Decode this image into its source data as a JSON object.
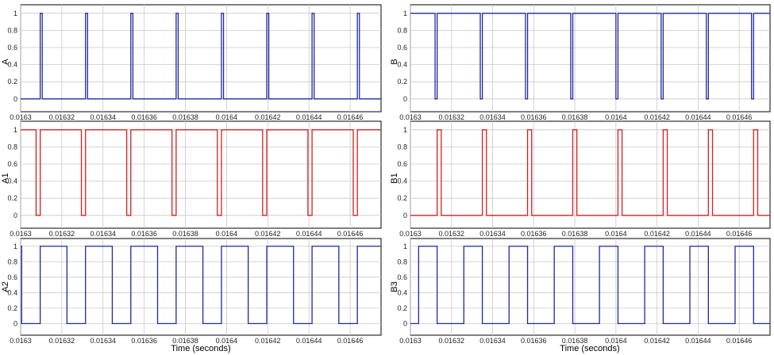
{
  "chart_data": [
    {
      "type": "line",
      "name": "A",
      "ylabel": "A",
      "xlabel": "",
      "color": "#1f2a9e",
      "xlim": [
        0.0163,
        0.016475
      ],
      "ylim": [
        -0.15,
        1.1
      ],
      "xticks": [
        "0.0163",
        "0.01632",
        "0.01634",
        "0.01636",
        "0.01638",
        "0.0164",
        "0.01642",
        "0.01644",
        "0.01646"
      ],
      "yticks": [
        "0",
        "0.2",
        "0.4",
        "0.6",
        "0.8",
        "1"
      ],
      "series": [
        {
          "x": [
            0.0163,
            0.0163095,
            0.0163095,
            0.0163105,
            0.0163105,
            0.0163315,
            0.0163315,
            0.0163325,
            0.0163325,
            0.0163535,
            0.0163535,
            0.0163545,
            0.0163545,
            0.0163755,
            0.0163755,
            0.0163765,
            0.0163765,
            0.0163975,
            0.0163975,
            0.0163985,
            0.0163985,
            0.0164195,
            0.0164195,
            0.0164205,
            0.0164205,
            0.0164415,
            0.0164415,
            0.0164425,
            0.0164425,
            0.0164635,
            0.0164635,
            0.0164645,
            0.0164645,
            0.016475
          ],
          "y": [
            0,
            0,
            1,
            1,
            0,
            0,
            1,
            1,
            0,
            0,
            1,
            1,
            0,
            0,
            1,
            1,
            0,
            0,
            1,
            1,
            0,
            0,
            1,
            1,
            0,
            0,
            1,
            1,
            0,
            0,
            1,
            1,
            0,
            0
          ]
        }
      ]
    },
    {
      "type": "line",
      "name": "A1",
      "ylabel": "A1",
      "xlabel": "",
      "color": "#d42020",
      "xlim": [
        0.0163,
        0.016475
      ],
      "ylim": [
        -0.15,
        1.1
      ],
      "xticks": [
        "0.0163",
        "0.01632",
        "0.01634",
        "0.01636",
        "0.01638",
        "0.0164",
        "0.01642",
        "0.01644",
        "0.01646"
      ],
      "yticks": [
        "0",
        "0.2",
        "0.4",
        "0.6",
        "0.8",
        "1"
      ],
      "series": [
        {
          "x": [
            0.0163,
            0.0163075,
            0.0163075,
            0.0163095,
            0.0163095,
            0.0163295,
            0.0163295,
            0.0163315,
            0.0163315,
            0.0163515,
            0.0163515,
            0.0163535,
            0.0163535,
            0.0163735,
            0.0163735,
            0.0163755,
            0.0163755,
            0.0163955,
            0.0163955,
            0.0163975,
            0.0163975,
            0.0164175,
            0.0164175,
            0.0164195,
            0.0164195,
            0.0164395,
            0.0164395,
            0.0164415,
            0.0164415,
            0.0164615,
            0.0164615,
            0.0164635,
            0.0164635,
            0.016475
          ],
          "y": [
            1,
            1,
            0,
            0,
            1,
            1,
            0,
            0,
            1,
            1,
            0,
            0,
            1,
            1,
            0,
            0,
            1,
            1,
            0,
            0,
            1,
            1,
            0,
            0,
            1,
            1,
            0,
            0,
            1,
            1,
            0,
            0,
            1,
            1
          ]
        }
      ]
    },
    {
      "type": "line",
      "name": "A2",
      "ylabel": "A2",
      "xlabel": "Time (seconds)",
      "color": "#1f2a9e",
      "xlim": [
        0.0163,
        0.016475
      ],
      "ylim": [
        -0.15,
        1.1
      ],
      "xticks": [
        "0.0163",
        "0.01632",
        "0.01634",
        "0.01636",
        "0.01638",
        "0.0164",
        "0.01642",
        "0.01644",
        "0.01646"
      ],
      "yticks": [
        "0",
        "0.2",
        "0.4",
        "0.6",
        "0.8",
        "1"
      ],
      "series": [
        {
          "x": [
            0.0163,
            0.0163005,
            0.0163005,
            0.0163095,
            0.0163095,
            0.0163225,
            0.0163225,
            0.0163315,
            0.0163315,
            0.0163445,
            0.0163445,
            0.0163535,
            0.0163535,
            0.0163665,
            0.0163665,
            0.0163755,
            0.0163755,
            0.0163885,
            0.0163885,
            0.0163975,
            0.0163975,
            0.0164105,
            0.0164105,
            0.0164195,
            0.0164195,
            0.0164325,
            0.0164325,
            0.0164415,
            0.0164415,
            0.0164545,
            0.0164545,
            0.0164635,
            0.0164635,
            0.016475
          ],
          "y": [
            1,
            1,
            0,
            0,
            1,
            1,
            0,
            0,
            1,
            1,
            0,
            0,
            1,
            1,
            0,
            0,
            1,
            1,
            0,
            0,
            1,
            1,
            0,
            0,
            1,
            1,
            0,
            0,
            1,
            1,
            0,
            0,
            1,
            1
          ]
        }
      ]
    },
    {
      "type": "line",
      "name": "B",
      "ylabel": "B",
      "xlabel": "",
      "color": "#1f2a9e",
      "xlim": [
        0.0163,
        0.016475
      ],
      "ylim": [
        -0.15,
        1.1
      ],
      "xticks": [
        "0.0163",
        "0.01632",
        "0.01634",
        "0.01636",
        "0.01638",
        "0.0164",
        "0.01642",
        "0.01644",
        "0.01646"
      ],
      "yticks": [
        "0",
        "0.2",
        "0.4",
        "0.6",
        "0.8",
        "1"
      ],
      "series": [
        {
          "x": [
            0.0163,
            0.016312,
            0.016312,
            0.016313,
            0.016313,
            0.016334,
            0.016334,
            0.016335,
            0.016335,
            0.016356,
            0.016356,
            0.016357,
            0.016357,
            0.016378,
            0.016378,
            0.016379,
            0.016379,
            0.0164,
            0.0164,
            0.016401,
            0.016401,
            0.016422,
            0.016422,
            0.016423,
            0.016423,
            0.016444,
            0.016444,
            0.016445,
            0.016445,
            0.016466,
            0.016466,
            0.016467,
            0.016467,
            0.016475
          ],
          "y": [
            1,
            1,
            0,
            0,
            1,
            1,
            0,
            0,
            1,
            1,
            0,
            0,
            1,
            1,
            0,
            0,
            1,
            1,
            0,
            0,
            1,
            1,
            0,
            0,
            1,
            1,
            0,
            0,
            1,
            1,
            0,
            0,
            1,
            1
          ]
        }
      ]
    },
    {
      "type": "line",
      "name": "B1",
      "ylabel": "B1",
      "xlabel": "",
      "color": "#d42020",
      "xlim": [
        0.0163,
        0.016475
      ],
      "ylim": [
        -0.15,
        1.1
      ],
      "xticks": [
        "0.0163",
        "0.01632",
        "0.01634",
        "0.01636",
        "0.01638",
        "0.0164",
        "0.01642",
        "0.01644",
        "0.01646"
      ],
      "yticks": [
        "0",
        "0.2",
        "0.4",
        "0.6",
        "0.8",
        "1"
      ],
      "series": [
        {
          "x": [
            0.0163,
            0.016313,
            0.016313,
            0.016315,
            0.016315,
            0.016335,
            0.016335,
            0.016337,
            0.016337,
            0.016357,
            0.016357,
            0.016359,
            0.016359,
            0.016379,
            0.016379,
            0.016381,
            0.016381,
            0.016401,
            0.016401,
            0.016403,
            0.016403,
            0.016423,
            0.016423,
            0.016425,
            0.016425,
            0.016445,
            0.016445,
            0.016447,
            0.016447,
            0.016467,
            0.016467,
            0.016469,
            0.016469,
            0.016475
          ],
          "y": [
            0,
            0,
            1,
            1,
            0,
            0,
            1,
            1,
            0,
            0,
            1,
            1,
            0,
            0,
            1,
            1,
            0,
            0,
            1,
            1,
            0,
            0,
            1,
            1,
            0,
            0,
            1,
            1,
            0,
            0,
            1,
            1,
            0,
            0
          ]
        }
      ]
    },
    {
      "type": "line",
      "name": "B3",
      "ylabel": "B3",
      "xlabel": "Time (seconds)",
      "color": "#1f2a9e",
      "xlim": [
        0.0163,
        0.016475
      ],
      "ylim": [
        -0.15,
        1.1
      ],
      "xticks": [
        "0.0163",
        "0.01632",
        "0.01634",
        "0.01636",
        "0.01638",
        "0.0164",
        "0.01642",
        "0.01644",
        "0.01646"
      ],
      "yticks": [
        "0",
        "0.2",
        "0.4",
        "0.6",
        "0.8",
        "1"
      ],
      "series": [
        {
          "x": [
            0.0163,
            0.016304,
            0.016304,
            0.016313,
            0.016313,
            0.016326,
            0.016326,
            0.016335,
            0.016335,
            0.016348,
            0.016348,
            0.016357,
            0.016357,
            0.01637,
            0.01637,
            0.016379,
            0.016379,
            0.016392,
            0.016392,
            0.016401,
            0.016401,
            0.016414,
            0.016414,
            0.016423,
            0.016423,
            0.016436,
            0.016436,
            0.016445,
            0.016445,
            0.016458,
            0.016458,
            0.016467,
            0.016467,
            0.016475
          ],
          "y": [
            0,
            0,
            1,
            1,
            0,
            0,
            1,
            1,
            0,
            0,
            1,
            1,
            0,
            0,
            1,
            1,
            0,
            0,
            1,
            1,
            0,
            0,
            1,
            1,
            0,
            0,
            1,
            1,
            0,
            0,
            1,
            1,
            0,
            0
          ]
        }
      ]
    }
  ]
}
